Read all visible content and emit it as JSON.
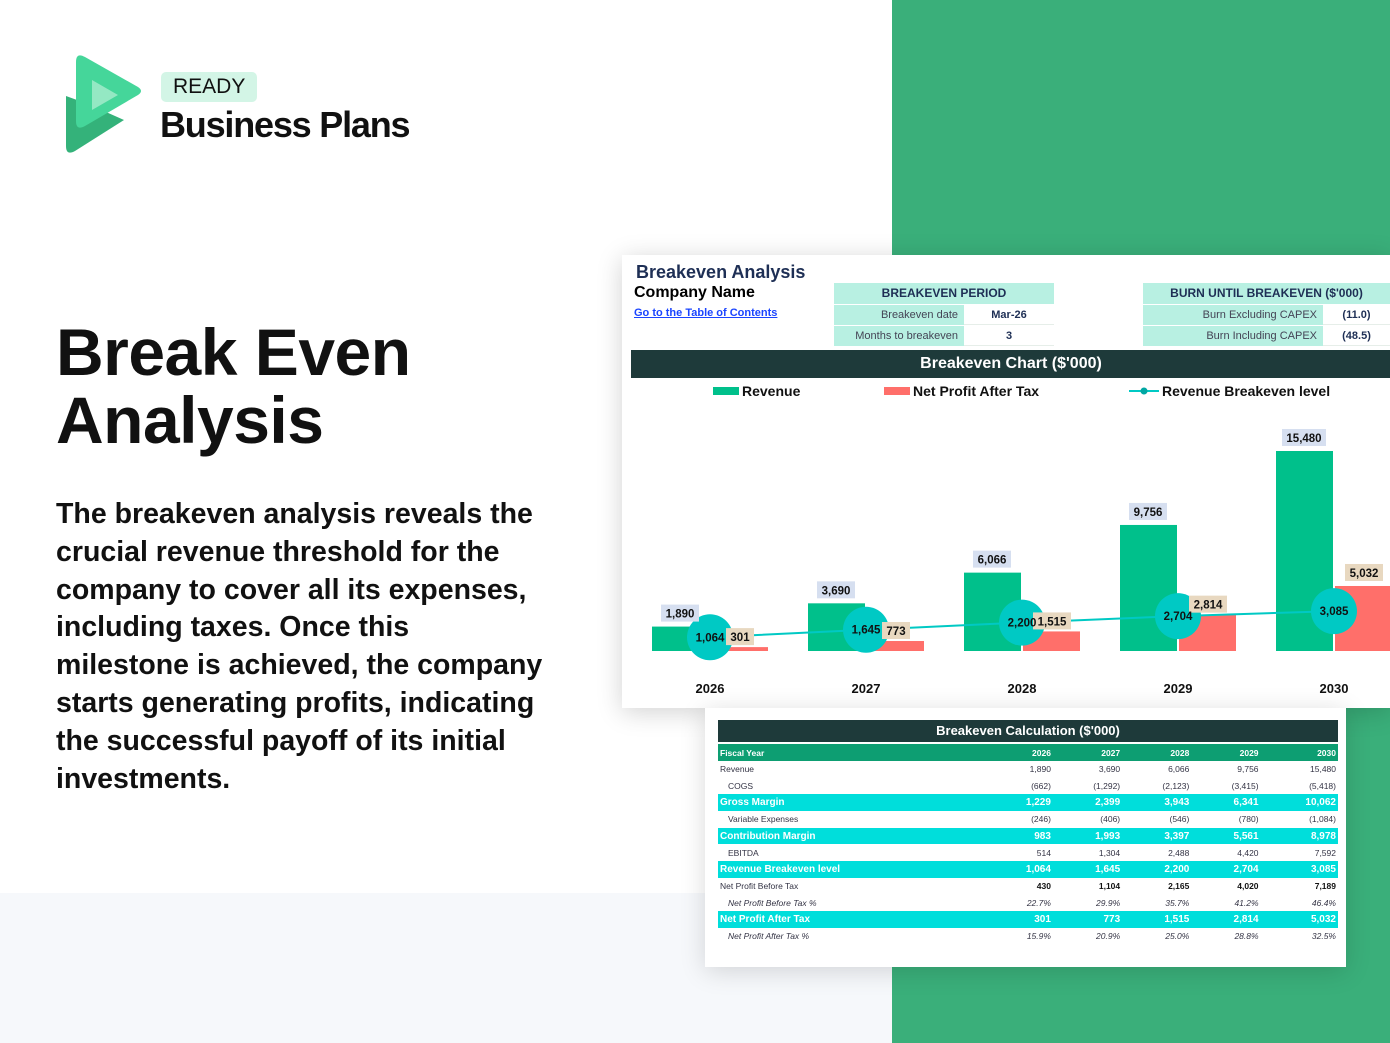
{
  "brand": {
    "badge": "READY",
    "name": "Business Plans",
    "colors": {
      "green": "#3aaf7a",
      "logo_light": "#45d69a",
      "logo_dark": "#34b27a"
    }
  },
  "hero": {
    "title_line1": "Break Even",
    "title_line2": "Analysis",
    "paragraph": "The breakeven analysis reveals the crucial revenue threshold for the company to cover all its expenses, including taxes. Once this milestone is achieved, the company starts generating profits, indicating the successful payoff of its initial investments."
  },
  "sheet": {
    "title": "Breakeven Analysis",
    "company": "Company Name",
    "toc_link": "Go to the Table of Contents",
    "period": {
      "header": "BREAKEVEN PERIOD",
      "rows": [
        {
          "label": "Breakeven date",
          "value": "Mar-26"
        },
        {
          "label": "Months to breakeven",
          "value": "3"
        }
      ]
    },
    "burn": {
      "header": "BURN UNTIL BREAKEVEN ($'000)",
      "rows": [
        {
          "label": "Burn Excluding CAPEX",
          "value": "(11.0)"
        },
        {
          "label": "Burn Including CAPEX",
          "value": "(48.5)"
        }
      ]
    },
    "chart_title": "Breakeven Chart ($'000)"
  },
  "chart_data": {
    "type": "bar",
    "title": "Breakeven Chart ($'000)",
    "categories": [
      "2026",
      "2027",
      "2028",
      "2029",
      "2030"
    ],
    "series": [
      {
        "name": "Revenue",
        "kind": "bar",
        "color": "#00c08b",
        "values": [
          1890,
          3690,
          6066,
          9756,
          15480
        ]
      },
      {
        "name": "Net Profit After Tax",
        "kind": "bar",
        "color": "#ff6f6a",
        "values": [
          301,
          773,
          1515,
          2814,
          5032
        ]
      },
      {
        "name": "Revenue Breakeven level",
        "kind": "line",
        "color": "#00c9c4",
        "values": [
          1064,
          1645,
          2200,
          2704,
          3085
        ]
      }
    ],
    "ylim": [
      0,
      15480
    ],
    "grid": false,
    "legend": "top",
    "data_labels": true
  },
  "table": {
    "title": "Breakeven Calculation ($'000)",
    "header": [
      "Fiscal Year",
      "2026",
      "2027",
      "2028",
      "2029",
      "2030"
    ],
    "rows": [
      {
        "type": "",
        "cells": [
          "Revenue",
          "1,890",
          "3,690",
          "6,066",
          "9,756",
          "15,480"
        ]
      },
      {
        "type": "ind",
        "cells": [
          "COGS",
          "(662)",
          "(1,292)",
          "(2,123)",
          "(3,415)",
          "(5,418)"
        ]
      },
      {
        "type": "hl",
        "cells": [
          "Gross Margin",
          "1,229",
          "2,399",
          "3,943",
          "6,341",
          "10,062"
        ]
      },
      {
        "type": "ind",
        "cells": [
          "Variable Expenses",
          "(246)",
          "(406)",
          "(546)",
          "(780)",
          "(1,084)"
        ]
      },
      {
        "type": "hl",
        "cells": [
          "Contribution Margin",
          "983",
          "1,993",
          "3,397",
          "5,561",
          "8,978"
        ]
      },
      {
        "type": "ind",
        "cells": [
          "EBITDA",
          "514",
          "1,304",
          "2,488",
          "4,420",
          "7,592"
        ]
      },
      {
        "type": "hl",
        "cells": [
          "Revenue Breakeven level",
          "1,064",
          "1,645",
          "2,200",
          "2,704",
          "3,085"
        ]
      },
      {
        "type": "bd",
        "cells": [
          "Net Profit Before Tax",
          "430",
          "1,104",
          "2,165",
          "4,020",
          "7,189"
        ]
      },
      {
        "type": "it",
        "cells": [
          "Net Profit Before Tax %",
          "22.7%",
          "29.9%",
          "35.7%",
          "41.2%",
          "46.4%"
        ]
      },
      {
        "type": "hl",
        "cells": [
          "Net Profit After Tax",
          "301",
          "773",
          "1,515",
          "2,814",
          "5,032"
        ]
      },
      {
        "type": "it",
        "cells": [
          "Net Profit After Tax %",
          "15.9%",
          "20.9%",
          "25.0%",
          "28.8%",
          "32.5%"
        ]
      }
    ]
  }
}
